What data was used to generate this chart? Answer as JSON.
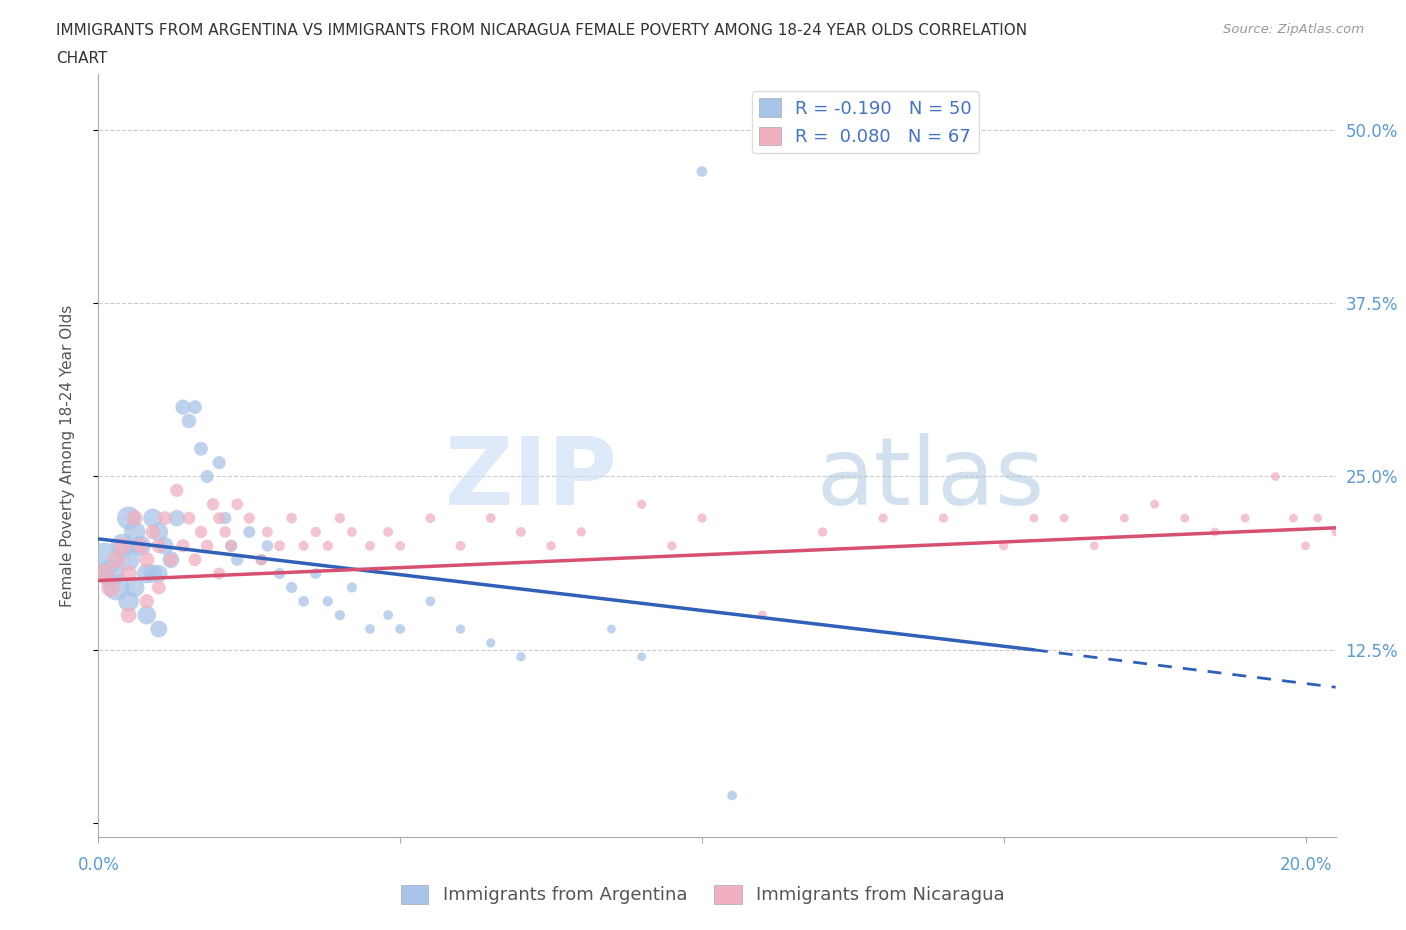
{
  "title_line1": "IMMIGRANTS FROM ARGENTINA VS IMMIGRANTS FROM NICARAGUA FEMALE POVERTY AMONG 18-24 YEAR OLDS CORRELATION",
  "title_line2": "CHART",
  "source": "Source: ZipAtlas.com",
  "ylabel": "Female Poverty Among 18-24 Year Olds",
  "yticks": [
    0.0,
    0.125,
    0.25,
    0.375,
    0.5
  ],
  "ytick_labels": [
    "",
    "12.5%",
    "25.0%",
    "37.5%",
    "50.0%"
  ],
  "xlim": [
    0.0,
    0.205
  ],
  "ylim": [
    -0.01,
    0.54
  ],
  "legend_label1": "R = -0.190   N = 50",
  "legend_label2": "R =  0.080   N = 67",
  "legend_label_bottom1": "Immigrants from Argentina",
  "legend_label_bottom2": "Immigrants from Nicaragua",
  "argentina_color": "#a8c4e8",
  "nicaragua_color": "#f0b0c0",
  "argentina_line_color": "#3060b8",
  "nicaragua_line_color": "#d85070",
  "watermark_zip": "ZIP",
  "watermark_atlas": "atlas",
  "background_color": "#ffffff",
  "argentina_x": [
    0.001,
    0.002,
    0.003,
    0.004,
    0.005,
    0.005,
    0.005,
    0.006,
    0.006,
    0.007,
    0.008,
    0.008,
    0.009,
    0.009,
    0.01,
    0.01,
    0.01,
    0.011,
    0.012,
    0.013,
    0.014,
    0.015,
    0.016,
    0.017,
    0.018,
    0.02,
    0.021,
    0.022,
    0.023,
    0.025,
    0.027,
    0.028,
    0.03,
    0.032,
    0.034,
    0.036,
    0.038,
    0.04,
    0.042,
    0.045,
    0.048,
    0.05,
    0.055,
    0.06,
    0.065,
    0.07,
    0.085,
    0.09,
    0.1,
    0.105
  ],
  "argentina_y": [
    0.19,
    0.18,
    0.17,
    0.2,
    0.22,
    0.19,
    0.16,
    0.21,
    0.17,
    0.2,
    0.18,
    0.15,
    0.22,
    0.18,
    0.21,
    0.18,
    0.14,
    0.2,
    0.19,
    0.22,
    0.3,
    0.29,
    0.3,
    0.27,
    0.25,
    0.26,
    0.22,
    0.2,
    0.19,
    0.21,
    0.19,
    0.2,
    0.18,
    0.17,
    0.16,
    0.18,
    0.16,
    0.15,
    0.17,
    0.14,
    0.15,
    0.14,
    0.16,
    0.14,
    0.13,
    0.12,
    0.14,
    0.12,
    0.47,
    0.02
  ],
  "argentina_sizes": [
    600,
    400,
    350,
    300,
    280,
    250,
    220,
    240,
    200,
    220,
    200,
    180,
    190,
    170,
    180,
    160,
    150,
    160,
    150,
    140,
    120,
    110,
    100,
    100,
    90,
    90,
    80,
    80,
    80,
    75,
    70,
    70,
    65,
    65,
    60,
    60,
    55,
    55,
    55,
    50,
    50,
    50,
    50,
    45,
    45,
    45,
    40,
    40,
    60,
    50
  ],
  "nicaragua_x": [
    0.001,
    0.002,
    0.003,
    0.004,
    0.005,
    0.005,
    0.006,
    0.007,
    0.008,
    0.008,
    0.009,
    0.01,
    0.01,
    0.011,
    0.012,
    0.013,
    0.014,
    0.015,
    0.016,
    0.017,
    0.018,
    0.019,
    0.02,
    0.02,
    0.021,
    0.022,
    0.023,
    0.025,
    0.027,
    0.028,
    0.03,
    0.032,
    0.034,
    0.036,
    0.038,
    0.04,
    0.042,
    0.045,
    0.048,
    0.05,
    0.055,
    0.06,
    0.065,
    0.07,
    0.075,
    0.08,
    0.09,
    0.095,
    0.1,
    0.11,
    0.12,
    0.13,
    0.14,
    0.15,
    0.155,
    0.16,
    0.165,
    0.17,
    0.175,
    0.18,
    0.185,
    0.19,
    0.195,
    0.198,
    0.2,
    0.202,
    0.205
  ],
  "nicaragua_y": [
    0.18,
    0.17,
    0.19,
    0.2,
    0.18,
    0.15,
    0.22,
    0.2,
    0.19,
    0.16,
    0.21,
    0.2,
    0.17,
    0.22,
    0.19,
    0.24,
    0.2,
    0.22,
    0.19,
    0.21,
    0.2,
    0.23,
    0.22,
    0.18,
    0.21,
    0.2,
    0.23,
    0.22,
    0.19,
    0.21,
    0.2,
    0.22,
    0.2,
    0.21,
    0.2,
    0.22,
    0.21,
    0.2,
    0.21,
    0.2,
    0.22,
    0.2,
    0.22,
    0.21,
    0.2,
    0.21,
    0.23,
    0.2,
    0.22,
    0.15,
    0.21,
    0.22,
    0.22,
    0.2,
    0.22,
    0.22,
    0.2,
    0.22,
    0.23,
    0.22,
    0.21,
    0.22,
    0.25,
    0.22,
    0.2,
    0.22,
    0.21
  ],
  "nicaragua_sizes": [
    200,
    180,
    160,
    150,
    140,
    130,
    130,
    120,
    120,
    110,
    110,
    110,
    100,
    100,
    95,
    90,
    90,
    85,
    85,
    80,
    80,
    80,
    75,
    75,
    70,
    70,
    70,
    65,
    65,
    60,
    60,
    60,
    55,
    55,
    55,
    55,
    50,
    50,
    50,
    50,
    50,
    50,
    50,
    50,
    45,
    45,
    45,
    45,
    45,
    45,
    45,
    45,
    45,
    45,
    40,
    40,
    40,
    40,
    40,
    40,
    40,
    40,
    40,
    40,
    40,
    40,
    40
  ],
  "trend_arg_x0": 0.0,
  "trend_arg_y0": 0.205,
  "trend_arg_x1": 0.155,
  "trend_arg_y1": 0.125,
  "trend_arg_dash_x0": 0.155,
  "trend_arg_dash_y0": 0.125,
  "trend_arg_dash_x1": 0.205,
  "trend_arg_dash_y1": 0.098,
  "trend_nic_x0": 0.0,
  "trend_nic_y0": 0.175,
  "trend_nic_x1": 0.205,
  "trend_nic_y1": 0.213
}
